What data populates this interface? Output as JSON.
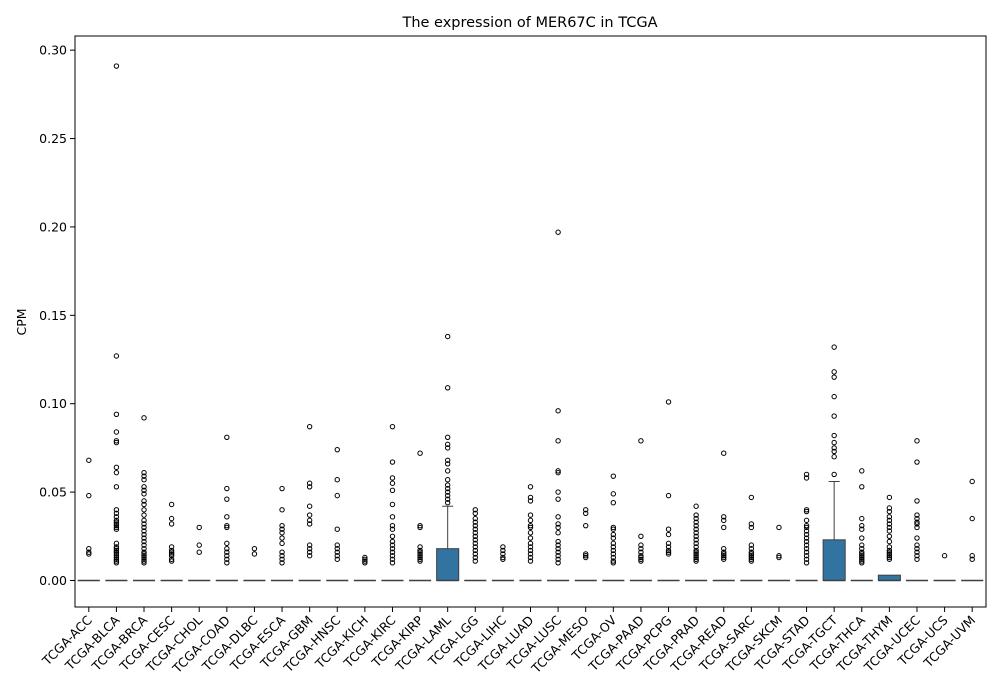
{
  "chart_data": {
    "type": "boxplot",
    "title": "The expression of MER67C in TCGA",
    "xlabel": "",
    "ylabel": "CPM",
    "ylim": [
      -0.015,
      0.308
    ],
    "yticks": [
      "0.00",
      "0.05",
      "0.10",
      "0.15",
      "0.20",
      "0.25",
      "0.30"
    ],
    "ytick_values": [
      0,
      0.05,
      0.1,
      0.15,
      0.2,
      0.25,
      0.3
    ],
    "box_color": "#3274a1",
    "grid": false,
    "categories": [
      "TCGA-ACC",
      "TCGA-BLCA",
      "TCGA-BRCA",
      "TCGA-CESC",
      "TCGA-CHOL",
      "TCGA-COAD",
      "TCGA-DLBC",
      "TCGA-ESCA",
      "TCGA-GBM",
      "TCGA-HNSC",
      "TCGA-KICH",
      "TCGA-KIRC",
      "TCGA-KIRP",
      "TCGA-LAML",
      "TCGA-LGG",
      "TCGA-LIHC",
      "TCGA-LUAD",
      "TCGA-LUSC",
      "TCGA-MESO",
      "TCGA-OV",
      "TCGA-PAAD",
      "TCGA-PCPG",
      "TCGA-PRAD",
      "TCGA-READ",
      "TCGA-SARC",
      "TCGA-SKCM",
      "TCGA-STAD",
      "TCGA-TGCT",
      "TCGA-THCA",
      "TCGA-THYM",
      "TCGA-UCEC",
      "TCGA-UCS",
      "TCGA-UVM"
    ],
    "boxes": [
      {
        "q1": 0,
        "median": 0,
        "q3": 0,
        "whisker_low": 0,
        "whisker_high": 0,
        "outliers": [
          0.068,
          0.048,
          0.018,
          0.016,
          0.015
        ]
      },
      {
        "q1": 0,
        "median": 0,
        "q3": 0,
        "whisker_low": 0,
        "whisker_high": 0,
        "outliers": [
          0.291,
          0.127,
          0.094,
          0.084,
          0.079,
          0.078,
          0.064,
          0.061,
          0.053,
          0.04,
          0.038,
          0.036,
          0.034,
          0.033,
          0.032,
          0.031,
          0.03,
          0.029,
          0.021,
          0.019,
          0.018,
          0.017,
          0.016,
          0.015,
          0.014,
          0.013,
          0.012,
          0.011,
          0.01
        ]
      },
      {
        "q1": 0,
        "median": 0,
        "q3": 0,
        "whisker_low": 0,
        "whisker_high": 0,
        "outliers": [
          0.092,
          0.061,
          0.059,
          0.057,
          0.053,
          0.051,
          0.049,
          0.045,
          0.043,
          0.04,
          0.037,
          0.034,
          0.032,
          0.03,
          0.028,
          0.026,
          0.024,
          0.022,
          0.02,
          0.018,
          0.016,
          0.015,
          0.014,
          0.013,
          0.012,
          0.011,
          0.01
        ]
      },
      {
        "q1": 0,
        "median": 0,
        "q3": 0,
        "whisker_low": 0,
        "whisker_high": 0,
        "outliers": [
          0.043,
          0.035,
          0.032,
          0.019,
          0.017,
          0.016,
          0.015,
          0.014,
          0.012,
          0.011
        ]
      },
      {
        "q1": 0,
        "median": 0,
        "q3": 0,
        "whisker_low": 0,
        "whisker_high": 0,
        "outliers": [
          0.03,
          0.02,
          0.016
        ]
      },
      {
        "q1": 0,
        "median": 0,
        "q3": 0,
        "whisker_low": 0,
        "whisker_high": 0,
        "outliers": [
          0.081,
          0.052,
          0.046,
          0.036,
          0.031,
          0.03,
          0.021,
          0.018,
          0.016,
          0.014,
          0.012,
          0.01
        ]
      },
      {
        "q1": 0,
        "median": 0,
        "q3": 0,
        "whisker_low": 0,
        "whisker_high": 0,
        "outliers": [
          0.018,
          0.015
        ]
      },
      {
        "q1": 0,
        "median": 0,
        "q3": 0,
        "whisker_low": 0,
        "whisker_high": 0,
        "outliers": [
          0.052,
          0.04,
          0.031,
          0.029,
          0.027,
          0.024,
          0.021,
          0.016,
          0.014,
          0.012,
          0.01
        ]
      },
      {
        "q1": 0,
        "median": 0,
        "q3": 0,
        "whisker_low": 0,
        "whisker_high": 0,
        "outliers": [
          0.087,
          0.055,
          0.053,
          0.042,
          0.037,
          0.034,
          0.032,
          0.02,
          0.018,
          0.016,
          0.014
        ]
      },
      {
        "q1": 0,
        "median": 0,
        "q3": 0,
        "whisker_low": 0,
        "whisker_high": 0,
        "outliers": [
          0.074,
          0.057,
          0.048,
          0.029,
          0.02,
          0.018,
          0.016,
          0.014,
          0.012
        ]
      },
      {
        "q1": 0,
        "median": 0,
        "q3": 0,
        "whisker_low": 0,
        "whisker_high": 0,
        "outliers": [
          0.013,
          0.012,
          0.011,
          0.01
        ]
      },
      {
        "q1": 0,
        "median": 0,
        "q3": 0,
        "whisker_low": 0,
        "whisker_high": 0,
        "outliers": [
          0.087,
          0.067,
          0.058,
          0.055,
          0.051,
          0.043,
          0.036,
          0.031,
          0.029,
          0.025,
          0.022,
          0.02,
          0.018,
          0.016,
          0.014,
          0.012,
          0.01
        ]
      },
      {
        "q1": 0,
        "median": 0,
        "q3": 0,
        "whisker_low": 0,
        "whisker_high": 0,
        "outliers": [
          0.072,
          0.031,
          0.03,
          0.019,
          0.017,
          0.016,
          0.015,
          0.014,
          0.013,
          0.012,
          0.011
        ]
      },
      {
        "q1": 0,
        "median": 0,
        "q3": 0.018,
        "whisker_low": 0,
        "whisker_high": 0.042,
        "outliers": [
          0.138,
          0.109,
          0.081,
          0.077,
          0.075,
          0.068,
          0.066,
          0.062,
          0.057,
          0.054,
          0.052,
          0.05,
          0.048,
          0.046,
          0.044
        ]
      },
      {
        "q1": 0,
        "median": 0,
        "q3": 0,
        "whisker_low": 0,
        "whisker_high": 0,
        "outliers": [
          0.04,
          0.038,
          0.035,
          0.033,
          0.031,
          0.029,
          0.027,
          0.025,
          0.023,
          0.021,
          0.019,
          0.017,
          0.015,
          0.013,
          0.011
        ]
      },
      {
        "q1": 0,
        "median": 0,
        "q3": 0,
        "whisker_low": 0,
        "whisker_high": 0,
        "outliers": [
          0.019,
          0.017,
          0.015,
          0.013,
          0.012
        ]
      },
      {
        "q1": 0,
        "median": 0,
        "q3": 0,
        "whisker_low": 0,
        "whisker_high": 0,
        "outliers": [
          0.053,
          0.047,
          0.045,
          0.037,
          0.034,
          0.031,
          0.03,
          0.027,
          0.024,
          0.021,
          0.019,
          0.017,
          0.015,
          0.013,
          0.011
        ]
      },
      {
        "q1": 0,
        "median": 0,
        "q3": 0,
        "whisker_low": 0,
        "whisker_high": 0,
        "outliers": [
          0.197,
          0.096,
          0.079,
          0.062,
          0.061,
          0.05,
          0.046,
          0.036,
          0.032,
          0.03,
          0.027,
          0.022,
          0.02,
          0.018,
          0.016,
          0.014,
          0.012,
          0.01
        ]
      },
      {
        "q1": 0,
        "median": 0,
        "q3": 0,
        "whisker_low": 0,
        "whisker_high": 0,
        "outliers": [
          0.04,
          0.038,
          0.031,
          0.015,
          0.014,
          0.013
        ]
      },
      {
        "q1": 0,
        "median": 0,
        "q3": 0,
        "whisker_low": 0,
        "whisker_high": 0,
        "outliers": [
          0.059,
          0.049,
          0.044,
          0.03,
          0.029,
          0.026,
          0.024,
          0.021,
          0.019,
          0.017,
          0.015,
          0.013,
          0.011,
          0.01
        ]
      },
      {
        "q1": 0,
        "median": 0,
        "q3": 0,
        "whisker_low": 0,
        "whisker_high": 0,
        "outliers": [
          0.079,
          0.025,
          0.02,
          0.018,
          0.016,
          0.014,
          0.013,
          0.012,
          0.011
        ]
      },
      {
        "q1": 0,
        "median": 0,
        "q3": 0,
        "whisker_low": 0,
        "whisker_high": 0,
        "outliers": [
          0.101,
          0.048,
          0.029,
          0.026,
          0.021,
          0.019,
          0.017,
          0.016,
          0.015
        ]
      },
      {
        "q1": 0,
        "median": 0,
        "q3": 0,
        "whisker_low": 0,
        "whisker_high": 0,
        "outliers": [
          0.042,
          0.037,
          0.035,
          0.033,
          0.031,
          0.029,
          0.027,
          0.025,
          0.023,
          0.021,
          0.019,
          0.017,
          0.016,
          0.015,
          0.014,
          0.013,
          0.012,
          0.011
        ]
      },
      {
        "q1": 0,
        "median": 0,
        "q3": 0,
        "whisker_low": 0,
        "whisker_high": 0,
        "outliers": [
          0.072,
          0.036,
          0.034,
          0.03,
          0.018,
          0.016,
          0.015,
          0.014,
          0.013,
          0.012
        ]
      },
      {
        "q1": 0,
        "median": 0,
        "q3": 0,
        "whisker_low": 0,
        "whisker_high": 0,
        "outliers": [
          0.047,
          0.032,
          0.03,
          0.02,
          0.018,
          0.016,
          0.015,
          0.014,
          0.013,
          0.012,
          0.011
        ]
      },
      {
        "q1": 0,
        "median": 0,
        "q3": 0,
        "whisker_low": 0,
        "whisker_high": 0,
        "outliers": [
          0.03,
          0.014,
          0.013
        ]
      },
      {
        "q1": 0,
        "median": 0,
        "q3": 0,
        "whisker_low": 0,
        "whisker_high": 0,
        "outliers": [
          0.06,
          0.058,
          0.04,
          0.039,
          0.034,
          0.031,
          0.03,
          0.028,
          0.026,
          0.024,
          0.022,
          0.02,
          0.018,
          0.016,
          0.014,
          0.012,
          0.01
        ]
      },
      {
        "q1": 0,
        "median": 0,
        "q3": 0.023,
        "whisker_low": 0,
        "whisker_high": 0.056,
        "outliers": [
          0.132,
          0.118,
          0.115,
          0.104,
          0.093,
          0.082,
          0.078,
          0.075,
          0.073,
          0.07,
          0.06
        ]
      },
      {
        "q1": 0,
        "median": 0,
        "q3": 0,
        "whisker_low": 0,
        "whisker_high": 0,
        "outliers": [
          0.062,
          0.053,
          0.035,
          0.031,
          0.029,
          0.024,
          0.02,
          0.018,
          0.016,
          0.015,
          0.014,
          0.013,
          0.012,
          0.011,
          0.01
        ]
      },
      {
        "q1": 0,
        "median": 0,
        "q3": 0.003,
        "whisker_low": 0,
        "whisker_high": 0.003,
        "outliers": [
          0.047,
          0.041,
          0.039,
          0.036,
          0.034,
          0.032,
          0.03,
          0.028,
          0.025,
          0.022,
          0.019,
          0.017,
          0.016,
          0.015,
          0.014,
          0.013,
          0.012
        ]
      },
      {
        "q1": 0,
        "median": 0,
        "q3": 0,
        "whisker_low": 0,
        "whisker_high": 0,
        "outliers": [
          0.079,
          0.067,
          0.045,
          0.037,
          0.035,
          0.033,
          0.032,
          0.03,
          0.024,
          0.02,
          0.018,
          0.016,
          0.014,
          0.012
        ]
      },
      {
        "q1": 0,
        "median": 0,
        "q3": 0,
        "whisker_low": 0,
        "whisker_high": 0,
        "outliers": [
          0.014
        ]
      },
      {
        "q1": 0,
        "median": 0,
        "q3": 0,
        "whisker_low": 0,
        "whisker_high": 0,
        "outliers": [
          0.056,
          0.035,
          0.014,
          0.012
        ]
      }
    ]
  }
}
